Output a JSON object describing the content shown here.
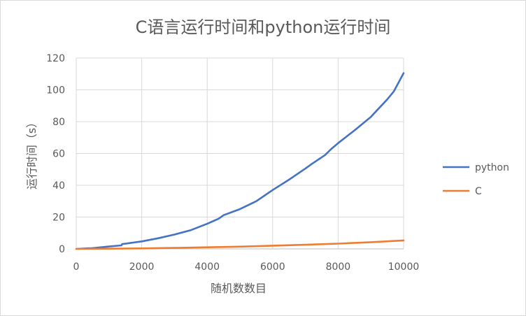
{
  "chart_data": {
    "type": "line",
    "title": "C语言运行时间和python运行时间",
    "xlabel": "随机数数目",
    "ylabel": "运行时间（s）",
    "xlim": [
      0,
      10000
    ],
    "ylim": [
      0,
      120
    ],
    "xticks": [
      0,
      2000,
      4000,
      6000,
      8000,
      10000
    ],
    "yticks": [
      0,
      20,
      40,
      60,
      80,
      100,
      120
    ],
    "grid": true,
    "legend_position": "right",
    "series": [
      {
        "name": "python",
        "color": "#4472c4",
        "x": [
          0,
          500,
          1000,
          1380,
          1400,
          2000,
          2500,
          3000,
          3500,
          4000,
          4350,
          4500,
          5000,
          5500,
          6000,
          6500,
          7000,
          7200,
          7600,
          7800,
          8000,
          8500,
          9000,
          9500,
          9700,
          10000
        ],
        "y": [
          0,
          0.5,
          1.5,
          2.2,
          3.0,
          4.7,
          6.7,
          9.0,
          11.8,
          15.8,
          19.0,
          21.2,
          25.0,
          30.0,
          37.0,
          43.5,
          50.5,
          53.5,
          59.0,
          63.0,
          66.5,
          74.5,
          83.0,
          94.0,
          99.0,
          110.5
        ]
      },
      {
        "name": "C",
        "color": "#ed7d31",
        "x": [
          0,
          1000,
          2000,
          3000,
          4000,
          5000,
          6000,
          7000,
          8000,
          9000,
          10000
        ],
        "y": [
          0,
          0.15,
          0.3,
          0.6,
          1.0,
          1.4,
          2.0,
          2.6,
          3.3,
          4.2,
          5.3
        ]
      }
    ]
  }
}
